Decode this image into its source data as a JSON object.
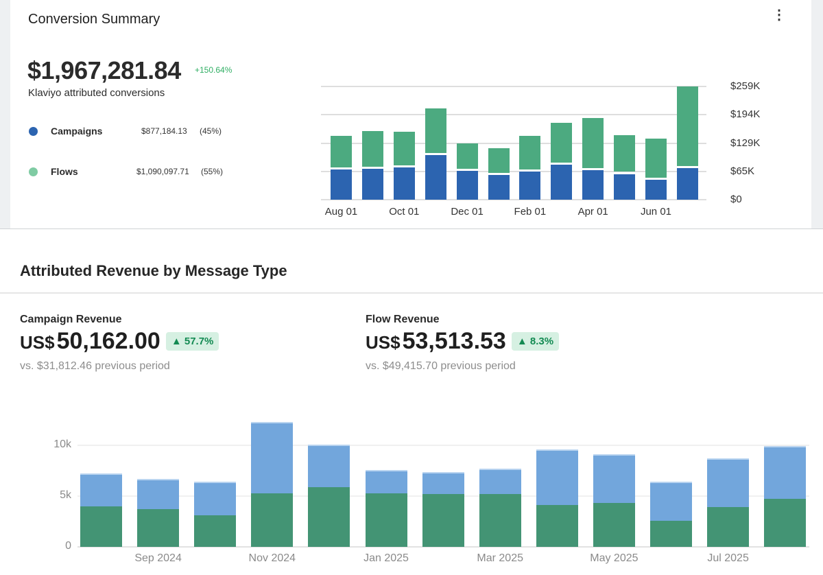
{
  "conversion_summary": {
    "title": "Conversion Summary",
    "menu_icon": "kebab-menu-icon",
    "total": "$1,967,281.84",
    "change": "+150.64%",
    "subtitle": "Klaviyo attributed conversions",
    "legend": [
      {
        "label": "Campaigns",
        "value": "$877,184.13",
        "share": "(45%)",
        "color": "#2c64b0"
      },
      {
        "label": "Flows",
        "value": "$1,090,097.71",
        "share": "(55%)",
        "color": "#7fcba3"
      }
    ]
  },
  "attributed_revenue": {
    "title": "Attributed Revenue by Message Type",
    "metrics": [
      {
        "label": "Campaign Revenue",
        "currency": "US$",
        "amount": "50,162.00",
        "change": "57.7%",
        "previous": "vs. $31,812.46 previous period"
      },
      {
        "label": "Flow Revenue",
        "currency": "US$",
        "amount": "53,513.53",
        "change": "8.3%",
        "previous": "vs. $49,415.70 previous period"
      }
    ]
  },
  "chart_data": [
    {
      "type": "bar",
      "stacked": true,
      "title": "Conversion Summary",
      "ytick_labels": [
        "$0",
        "$65K",
        "$129K",
        "$194K",
        "$259K"
      ],
      "ylim": [
        0,
        259
      ],
      "yunit": "K USD",
      "xtick_labels": [
        "Aug 01",
        "Oct 01",
        "Dec 01",
        "Feb 01",
        "Apr 01",
        "Jun 01"
      ],
      "categories": [
        "Aug",
        "Sep",
        "Oct",
        "Nov",
        "Dec",
        "Jan",
        "Feb",
        "Mar",
        "Apr",
        "May",
        "Jun",
        "Jul"
      ],
      "series": [
        {
          "name": "Campaigns",
          "color": "#2c64b0",
          "values": [
            72,
            73,
            77,
            105,
            69,
            59,
            67,
            83,
            71,
            62,
            49,
            76
          ]
        },
        {
          "name": "Flows",
          "color": "#4caa80",
          "values": [
            74,
            84,
            78,
            104,
            59,
            59,
            79,
            93,
            116,
            86,
            90,
            183
          ]
        }
      ],
      "grid": true
    },
    {
      "type": "bar",
      "stacked": true,
      "title": "Attributed Revenue by Message Type",
      "ytick_labels": [
        "0",
        "5k",
        "10k"
      ],
      "ylim": [
        0,
        12500
      ],
      "xtick_labels": [
        "Sep 2024",
        "Nov 2024",
        "Jan 2025",
        "Mar 2025",
        "May 2025",
        "Jul 2025"
      ],
      "categories": [
        "Aug 2024",
        "Sep 2024",
        "Oct 2024",
        "Nov 2024",
        "Dec 2024",
        "Jan 2025",
        "Feb 2025",
        "Mar 2025",
        "Apr 2025",
        "May 2025",
        "Jun 2025",
        "Jul 2025",
        "Aug 2025"
      ],
      "series": [
        {
          "name": "Flow Revenue",
          "color": "#439474",
          "values": [
            4000,
            3700,
            3100,
            5300,
            5900,
            5300,
            5200,
            5200,
            4150,
            4300,
            2600,
            3900,
            4750
          ]
        },
        {
          "name": "Campaign Revenue",
          "color": "#72a6dc",
          "values": [
            3200,
            3000,
            3300,
            7000,
            4200,
            2300,
            2150,
            2500,
            5450,
            4800,
            3800,
            4850,
            5200
          ]
        }
      ],
      "grid": true
    }
  ]
}
